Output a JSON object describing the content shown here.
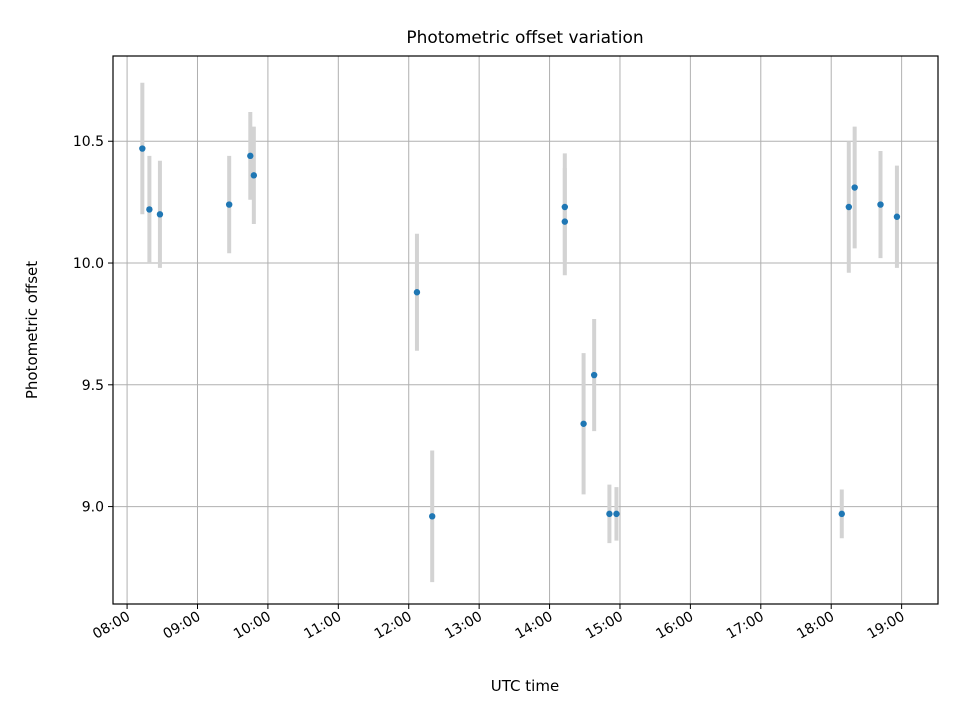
{
  "chart_data": {
    "type": "scatter",
    "title": "Photometric offset variation",
    "xlabel": "UTC time",
    "ylabel": "Photometric offset",
    "x_axis": "time",
    "xlim": [
      "07:48",
      "19:31"
    ],
    "ylim": [
      8.6,
      10.85
    ],
    "x_ticks": [
      "08:00",
      "09:00",
      "10:00",
      "11:00",
      "12:00",
      "13:00",
      "14:00",
      "15:00",
      "16:00",
      "17:00",
      "18:00",
      "19:00"
    ],
    "y_ticks": [
      9.0,
      9.5,
      10.0,
      10.5
    ],
    "y_tick_labels": [
      "9.0",
      "9.5",
      "10.0",
      "10.5"
    ],
    "grid": true,
    "legend": false,
    "colors": {
      "point": "#1f77b4",
      "errorbar": "#d3d3d3",
      "grid": "#b0b0b0"
    },
    "points": [
      {
        "x": "08:13",
        "y": 10.47,
        "yerr": 0.27
      },
      {
        "x": "08:19",
        "y": 10.22,
        "yerr": 0.22
      },
      {
        "x": "08:28",
        "y": 10.2,
        "yerr": 0.22
      },
      {
        "x": "09:27",
        "y": 10.24,
        "yerr": 0.2
      },
      {
        "x": "09:45",
        "y": 10.44,
        "yerr": 0.18
      },
      {
        "x": "09:48",
        "y": 10.36,
        "yerr": 0.2
      },
      {
        "x": "12:07",
        "y": 9.88,
        "yerr": 0.24
      },
      {
        "x": "12:20",
        "y": 8.96,
        "yerr": 0.27
      },
      {
        "x": "14:13",
        "y": 10.23,
        "yerr": 0.22
      },
      {
        "x": "14:13",
        "y": 10.17,
        "yerr": 0.22
      },
      {
        "x": "14:29",
        "y": 9.34,
        "yerr": 0.29
      },
      {
        "x": "14:38",
        "y": 9.54,
        "yerr": 0.23
      },
      {
        "x": "14:51",
        "y": 8.97,
        "yerr": 0.12
      },
      {
        "x": "14:57",
        "y": 8.97,
        "yerr": 0.11
      },
      {
        "x": "18:09",
        "y": 8.97,
        "yerr": 0.1
      },
      {
        "x": "18:15",
        "y": 10.23,
        "yerr": 0.27
      },
      {
        "x": "18:20",
        "y": 10.31,
        "yerr": 0.25
      },
      {
        "x": "18:42",
        "y": 10.24,
        "yerr": 0.22
      },
      {
        "x": "18:56",
        "y": 10.19,
        "yerr": 0.21
      }
    ]
  }
}
